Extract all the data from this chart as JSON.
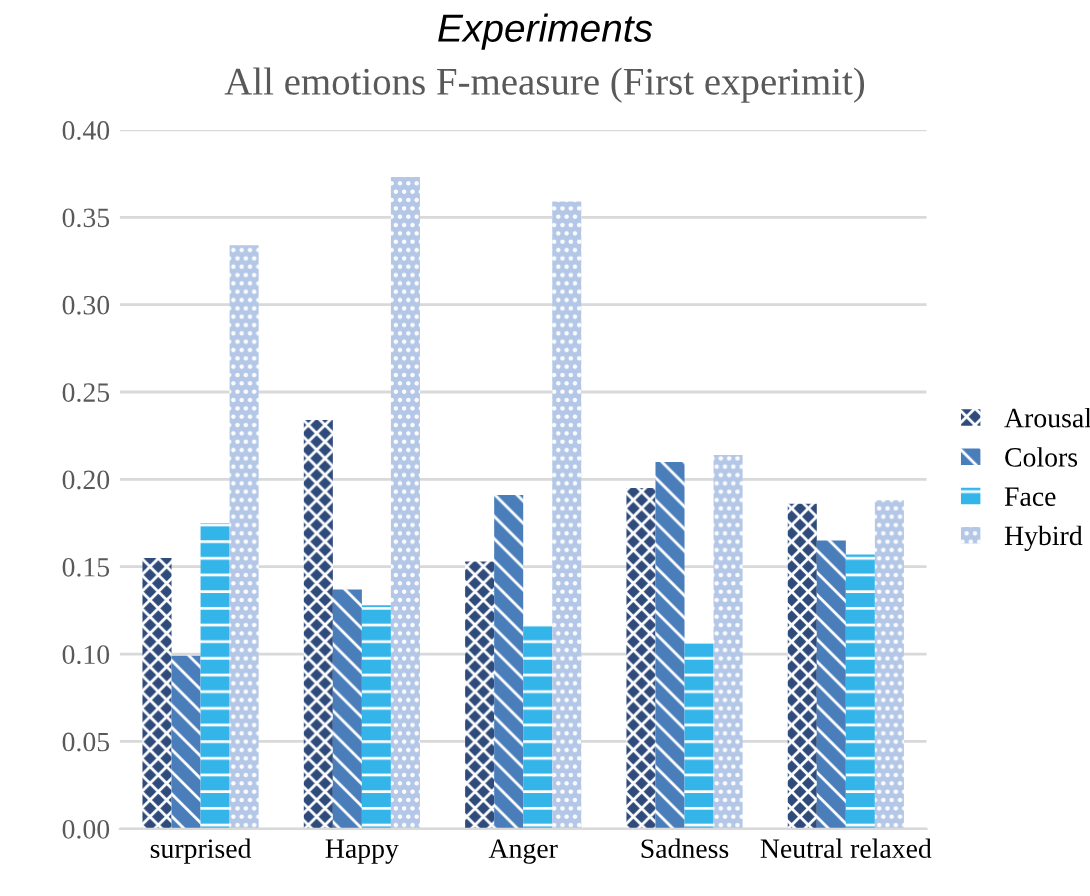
{
  "chart_data": {
    "type": "bar",
    "title": "Experiments",
    "subtitle": "All emotions F-measure (First experimit)",
    "categories": [
      "surprised",
      "Happy",
      "Anger",
      "Sadness",
      "Neutral relaxed"
    ],
    "series": [
      {
        "name": "Arousal",
        "color": "#2f4b7c",
        "values": [
          0.155,
          0.234,
          0.153,
          0.195,
          0.186
        ]
      },
      {
        "name": "Colors",
        "color": "#4a7ebb",
        "values": [
          0.099,
          0.137,
          0.191,
          0.21,
          0.165
        ]
      },
      {
        "name": "Face",
        "color": "#33b5ea",
        "values": [
          0.175,
          0.128,
          0.117,
          0.106,
          0.157
        ]
      },
      {
        "name": "Hybird",
        "color": "#b4c7e7",
        "values": [
          0.334,
          0.373,
          0.359,
          0.214,
          0.188
        ]
      }
    ],
    "ylim": [
      0,
      0.4
    ],
    "yticks": [
      {
        "value": 0,
        "label": "0.00"
      },
      {
        "value": 0.05,
        "label": "0.05"
      },
      {
        "value": 0.1,
        "label": "0.10"
      },
      {
        "value": 0.15,
        "label": "0.15"
      },
      {
        "value": 0.2,
        "label": "0.20"
      },
      {
        "value": 0.25,
        "label": "0.25"
      },
      {
        "value": 0.3,
        "label": "0.30"
      },
      {
        "value": 0.35,
        "label": "0.35"
      },
      {
        "value": 0.4,
        "label": "0.40"
      }
    ],
    "grid": "y",
    "legend": "right"
  }
}
